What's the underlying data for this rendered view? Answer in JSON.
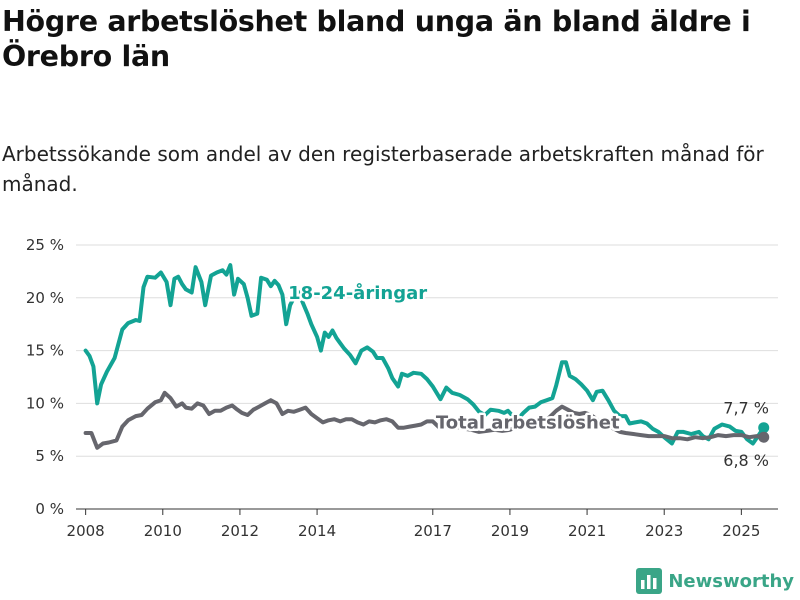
{
  "title": "Högre arbetslöshet bland unga än bland äldre i Örebro län",
  "subtitle": "Arbetssökande som andel av den registerbaserade arbetskraften månad för månad.",
  "brand": "Newsworthy",
  "chart_data": {
    "type": "line",
    "xlim": [
      2007.75,
      2025.95
    ],
    "ylim": [
      0,
      25
    ],
    "yticks": [
      {
        "value": 0,
        "label": "0 %"
      },
      {
        "value": 5,
        "label": "5 %"
      },
      {
        "value": 10,
        "label": "10 %"
      },
      {
        "value": 15,
        "label": "15 %"
      },
      {
        "value": 20,
        "label": "20 %"
      },
      {
        "value": 25,
        "label": "25 %"
      }
    ],
    "xticks": [
      {
        "value": 2008,
        "label": "2008"
      },
      {
        "value": 2010,
        "label": "2010"
      },
      {
        "value": 2012,
        "label": "2012"
      },
      {
        "value": 2014,
        "label": "2014"
      },
      {
        "value": 2017,
        "label": "2017"
      },
      {
        "value": 2019,
        "label": "2019"
      },
      {
        "value": 2021,
        "label": "2021"
      },
      {
        "value": 2023,
        "label": "2023"
      },
      {
        "value": 2025,
        "label": "2025"
      }
    ],
    "series": [
      {
        "name": "18-24-åringar",
        "color": "#13a394",
        "end_label": "7,7 %",
        "label_pos": [
          2013.25,
          19.9
        ],
        "points": [
          [
            2008.0,
            15.0
          ],
          [
            2008.1,
            14.5
          ],
          [
            2008.2,
            13.5
          ],
          [
            2008.3,
            10.0
          ],
          [
            2008.4,
            11.8
          ],
          [
            2008.55,
            13.0
          ],
          [
            2008.75,
            14.3
          ],
          [
            2008.95,
            17.0
          ],
          [
            2009.1,
            17.6
          ],
          [
            2009.3,
            17.9
          ],
          [
            2009.4,
            17.8
          ],
          [
            2009.5,
            21.0
          ],
          [
            2009.6,
            22.0
          ],
          [
            2009.8,
            21.9
          ],
          [
            2009.95,
            22.4
          ],
          [
            2010.1,
            21.5
          ],
          [
            2010.2,
            19.3
          ],
          [
            2010.3,
            21.8
          ],
          [
            2010.4,
            22.0
          ],
          [
            2010.5,
            21.3
          ],
          [
            2010.6,
            20.8
          ],
          [
            2010.75,
            20.5
          ],
          [
            2010.85,
            22.9
          ],
          [
            2011.0,
            21.5
          ],
          [
            2011.1,
            19.3
          ],
          [
            2011.25,
            22.1
          ],
          [
            2011.4,
            22.4
          ],
          [
            2011.55,
            22.6
          ],
          [
            2011.65,
            22.2
          ],
          [
            2011.75,
            23.1
          ],
          [
            2011.85,
            20.3
          ],
          [
            2011.95,
            21.8
          ],
          [
            2012.1,
            21.3
          ],
          [
            2012.2,
            20.0
          ],
          [
            2012.3,
            18.3
          ],
          [
            2012.45,
            18.5
          ],
          [
            2012.55,
            21.9
          ],
          [
            2012.7,
            21.7
          ],
          [
            2012.8,
            21.1
          ],
          [
            2012.9,
            21.6
          ],
          [
            2013.0,
            21.2
          ],
          [
            2013.1,
            20.3
          ],
          [
            2013.2,
            17.5
          ],
          [
            2013.3,
            19.3
          ],
          [
            2013.4,
            20.0
          ],
          [
            2013.5,
            20.6
          ],
          [
            2013.6,
            19.8
          ],
          [
            2013.75,
            18.5
          ],
          [
            2013.85,
            17.5
          ],
          [
            2014.0,
            16.3
          ],
          [
            2014.1,
            15.0
          ],
          [
            2014.2,
            16.7
          ],
          [
            2014.3,
            16.3
          ],
          [
            2014.4,
            16.9
          ],
          [
            2014.5,
            16.2
          ],
          [
            2014.6,
            15.7
          ],
          [
            2014.7,
            15.2
          ],
          [
            2014.85,
            14.6
          ],
          [
            2015.0,
            13.8
          ],
          [
            2015.15,
            15.0
          ],
          [
            2015.3,
            15.3
          ],
          [
            2015.45,
            14.9
          ],
          [
            2015.55,
            14.3
          ],
          [
            2015.7,
            14.3
          ],
          [
            2015.85,
            13.3
          ],
          [
            2015.95,
            12.4
          ],
          [
            2016.1,
            11.6
          ],
          [
            2016.2,
            12.8
          ],
          [
            2016.35,
            12.6
          ],
          [
            2016.5,
            12.9
          ],
          [
            2016.7,
            12.8
          ],
          [
            2016.85,
            12.3
          ],
          [
            2017.0,
            11.6
          ],
          [
            2017.2,
            10.4
          ],
          [
            2017.35,
            11.5
          ],
          [
            2017.5,
            11.0
          ],
          [
            2017.7,
            10.8
          ],
          [
            2017.9,
            10.4
          ],
          [
            2018.05,
            9.9
          ],
          [
            2018.2,
            9.2
          ],
          [
            2018.35,
            8.9
          ],
          [
            2018.5,
            9.4
          ],
          [
            2018.7,
            9.3
          ],
          [
            2018.85,
            9.1
          ],
          [
            2018.95,
            9.3
          ],
          [
            2019.1,
            8.7
          ],
          [
            2019.2,
            8.5
          ],
          [
            2019.35,
            9.1
          ],
          [
            2019.5,
            9.6
          ],
          [
            2019.65,
            9.7
          ],
          [
            2019.8,
            10.1
          ],
          [
            2019.95,
            10.3
          ],
          [
            2020.1,
            10.5
          ],
          [
            2020.2,
            11.7
          ],
          [
            2020.35,
            13.9
          ],
          [
            2020.45,
            13.9
          ],
          [
            2020.55,
            12.6
          ],
          [
            2020.7,
            12.3
          ],
          [
            2020.85,
            11.8
          ],
          [
            2021.0,
            11.2
          ],
          [
            2021.15,
            10.3
          ],
          [
            2021.25,
            11.1
          ],
          [
            2021.4,
            11.2
          ],
          [
            2021.55,
            10.3
          ],
          [
            2021.7,
            9.3
          ],
          [
            2021.85,
            8.8
          ],
          [
            2022.0,
            8.8
          ],
          [
            2022.1,
            8.1
          ],
          [
            2022.25,
            8.2
          ],
          [
            2022.4,
            8.3
          ],
          [
            2022.55,
            8.1
          ],
          [
            2022.7,
            7.6
          ],
          [
            2022.85,
            7.3
          ],
          [
            2023.0,
            6.8
          ],
          [
            2023.2,
            6.2
          ],
          [
            2023.35,
            7.3
          ],
          [
            2023.5,
            7.3
          ],
          [
            2023.7,
            7.1
          ],
          [
            2023.9,
            7.3
          ],
          [
            2024.0,
            6.9
          ],
          [
            2024.15,
            6.6
          ],
          [
            2024.3,
            7.6
          ],
          [
            2024.5,
            8.0
          ],
          [
            2024.7,
            7.8
          ],
          [
            2024.85,
            7.4
          ],
          [
            2025.0,
            7.3
          ],
          [
            2025.15,
            6.6
          ],
          [
            2025.3,
            6.2
          ],
          [
            2025.45,
            7.0
          ],
          [
            2025.58,
            7.7
          ]
        ]
      },
      {
        "name": "Total arbetslöshet",
        "color": "#66666d",
        "end_label": "6,8 %",
        "label_pos": [
          2017.08,
          7.6
        ],
        "points": [
          [
            2008.0,
            7.2
          ],
          [
            2008.15,
            7.2
          ],
          [
            2008.3,
            5.8
          ],
          [
            2008.45,
            6.2
          ],
          [
            2008.6,
            6.3
          ],
          [
            2008.8,
            6.5
          ],
          [
            2008.95,
            7.8
          ],
          [
            2009.1,
            8.4
          ],
          [
            2009.3,
            8.8
          ],
          [
            2009.45,
            8.9
          ],
          [
            2009.6,
            9.5
          ],
          [
            2009.8,
            10.1
          ],
          [
            2009.95,
            10.3
          ],
          [
            2010.05,
            11.0
          ],
          [
            2010.2,
            10.5
          ],
          [
            2010.35,
            9.7
          ],
          [
            2010.5,
            10.0
          ],
          [
            2010.6,
            9.6
          ],
          [
            2010.75,
            9.5
          ],
          [
            2010.9,
            10.0
          ],
          [
            2011.05,
            9.8
          ],
          [
            2011.2,
            9.0
          ],
          [
            2011.35,
            9.3
          ],
          [
            2011.5,
            9.3
          ],
          [
            2011.65,
            9.6
          ],
          [
            2011.8,
            9.8
          ],
          [
            2011.9,
            9.5
          ],
          [
            2012.05,
            9.1
          ],
          [
            2012.2,
            8.9
          ],
          [
            2012.35,
            9.4
          ],
          [
            2012.5,
            9.7
          ],
          [
            2012.65,
            10.0
          ],
          [
            2012.8,
            10.3
          ],
          [
            2012.95,
            10.0
          ],
          [
            2013.1,
            9.0
          ],
          [
            2013.25,
            9.3
          ],
          [
            2013.4,
            9.2
          ],
          [
            2013.55,
            9.4
          ],
          [
            2013.7,
            9.6
          ],
          [
            2013.85,
            9.0
          ],
          [
            2014.0,
            8.6
          ],
          [
            2014.15,
            8.2
          ],
          [
            2014.3,
            8.4
          ],
          [
            2014.45,
            8.5
          ],
          [
            2014.6,
            8.3
          ],
          [
            2014.75,
            8.5
          ],
          [
            2014.9,
            8.5
          ],
          [
            2015.05,
            8.2
          ],
          [
            2015.2,
            8.0
          ],
          [
            2015.35,
            8.3
          ],
          [
            2015.5,
            8.2
          ],
          [
            2015.65,
            8.4
          ],
          [
            2015.8,
            8.5
          ],
          [
            2015.95,
            8.3
          ],
          [
            2016.1,
            7.7
          ],
          [
            2016.25,
            7.7
          ],
          [
            2016.4,
            7.8
          ],
          [
            2016.55,
            7.9
          ],
          [
            2016.7,
            8.0
          ],
          [
            2016.85,
            8.3
          ],
          [
            2017.0,
            8.3
          ],
          [
            2017.2,
            7.6
          ],
          [
            2017.4,
            7.9
          ],
          [
            2017.6,
            7.8
          ],
          [
            2017.8,
            7.6
          ],
          [
            2018.0,
            7.5
          ],
          [
            2018.2,
            7.3
          ],
          [
            2018.4,
            7.4
          ],
          [
            2018.6,
            7.5
          ],
          [
            2018.8,
            7.4
          ],
          [
            2019.0,
            7.5
          ],
          [
            2019.2,
            7.8
          ],
          [
            2019.4,
            8.0
          ],
          [
            2019.6,
            8.3
          ],
          [
            2019.8,
            8.5
          ],
          [
            2020.0,
            8.6
          ],
          [
            2020.2,
            9.3
          ],
          [
            2020.35,
            9.7
          ],
          [
            2020.5,
            9.4
          ],
          [
            2020.65,
            9.1
          ],
          [
            2020.8,
            9.0
          ],
          [
            2020.95,
            9.1
          ],
          [
            2021.1,
            8.9
          ],
          [
            2021.25,
            8.5
          ],
          [
            2021.4,
            8.1
          ],
          [
            2021.55,
            7.8
          ],
          [
            2021.7,
            7.6
          ],
          [
            2021.85,
            7.3
          ],
          [
            2022.0,
            7.2
          ],
          [
            2022.2,
            7.1
          ],
          [
            2022.4,
            7.0
          ],
          [
            2022.6,
            6.9
          ],
          [
            2022.8,
            6.9
          ],
          [
            2023.0,
            6.9
          ],
          [
            2023.2,
            6.7
          ],
          [
            2023.4,
            6.7
          ],
          [
            2023.6,
            6.6
          ],
          [
            2023.8,
            6.8
          ],
          [
            2024.0,
            6.7
          ],
          [
            2024.2,
            6.8
          ],
          [
            2024.4,
            7.0
          ],
          [
            2024.6,
            6.9
          ],
          [
            2024.8,
            7.0
          ],
          [
            2025.0,
            7.0
          ],
          [
            2025.2,
            6.8
          ],
          [
            2025.4,
            6.9
          ],
          [
            2025.58,
            6.8
          ]
        ]
      }
    ]
  }
}
